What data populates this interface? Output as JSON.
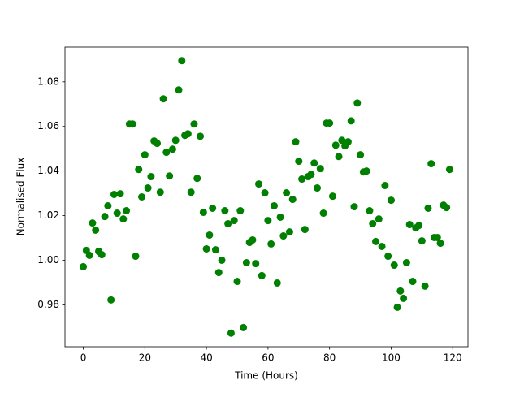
{
  "chart_data": {
    "type": "scatter",
    "x_label": "Time (Hours)",
    "y_label": "Normalised Flux",
    "color": "#008000",
    "x": [
      0,
      1,
      2,
      3,
      4,
      5,
      6,
      7,
      8,
      9,
      10,
      11,
      12,
      13,
      14,
      15,
      16,
      17,
      18,
      19,
      20,
      21,
      22,
      23,
      24,
      25,
      26,
      27,
      28,
      29,
      30,
      31,
      32,
      33,
      34,
      35,
      36,
      37,
      38,
      39,
      40,
      41,
      42,
      43,
      44,
      45,
      46,
      47,
      48,
      49,
      50,
      51,
      52,
      53,
      54,
      55,
      56,
      57,
      58,
      59,
      60,
      61,
      62,
      63,
      64,
      65,
      66,
      67,
      68,
      69,
      70,
      71,
      72,
      73,
      74,
      75,
      76,
      77,
      78,
      79,
      80,
      81,
      82,
      83,
      84,
      85,
      86,
      87,
      88,
      89,
      90,
      91,
      92,
      93,
      94,
      95,
      96,
      97,
      98,
      99,
      100,
      101,
      102,
      103,
      104,
      105,
      106,
      107,
      108,
      109,
      110,
      111,
      112,
      113,
      114,
      115,
      116,
      117,
      118,
      119
    ],
    "values": [
      0.9971,
      1.0044,
      1.0022,
      1.0167,
      1.0135,
      1.004,
      1.0025,
      1.0196,
      1.0244,
      0.9822,
      1.0295,
      1.0211,
      1.0298,
      1.0185,
      1.0222,
      1.0611,
      1.0611,
      1.0018,
      1.0407,
      1.0284,
      1.0473,
      1.0324,
      1.0375,
      1.0535,
      1.0524,
      1.0305,
      1.0724,
      1.0484,
      1.0378,
      1.0498,
      1.0538,
      1.0764,
      1.0895,
      1.056,
      1.0567,
      1.0305,
      1.0611,
      1.0367,
      1.0556,
      1.0215,
      1.0051,
      1.0113,
      1.0233,
      1.0047,
      0.9945,
      1.0,
      1.0222,
      1.0164,
      0.9673,
      1.0178,
      0.9905,
      1.0222,
      0.9698,
      0.9989,
      1.008,
      1.0091,
      0.9985,
      1.0342,
      0.9931,
      1.0302,
      1.0178,
      1.0073,
      1.0244,
      0.9898,
      1.0193,
      1.0109,
      1.0302,
      1.0127,
      1.0273,
      1.0531,
      1.0444,
      1.0364,
      1.0138,
      1.0375,
      1.0385,
      1.0436,
      1.0324,
      1.0411,
      1.0211,
      1.0615,
      1.0615,
      1.0287,
      1.0516,
      1.0465,
      1.0538,
      1.0513,
      1.0531,
      1.0625,
      1.024,
      1.0705,
      1.0473,
      1.0396,
      1.04,
      1.0222,
      1.0164,
      1.0084,
      1.0185,
      1.0062,
      1.0335,
      1.0018,
      1.0269,
      0.9978,
      0.9789,
      0.9862,
      0.9829,
      0.9989,
      1.016,
      0.9905,
      1.0145,
      1.0156,
      1.0087,
      0.9884,
      1.0233,
      1.0433,
      1.0102,
      1.0102,
      1.0076,
      1.0247,
      1.0236,
      1.0407
    ],
    "xlim": [
      -5.95,
      124.95
    ],
    "ylim": [
      0.9612,
      1.0956
    ],
    "xticks": [
      0,
      20,
      40,
      60,
      80,
      100,
      120
    ],
    "yticks": [
      0.98,
      {
        "value": 1,
        "label": "1.00"
      },
      1.02,
      1.04,
      1.06,
      1.08
    ]
  }
}
